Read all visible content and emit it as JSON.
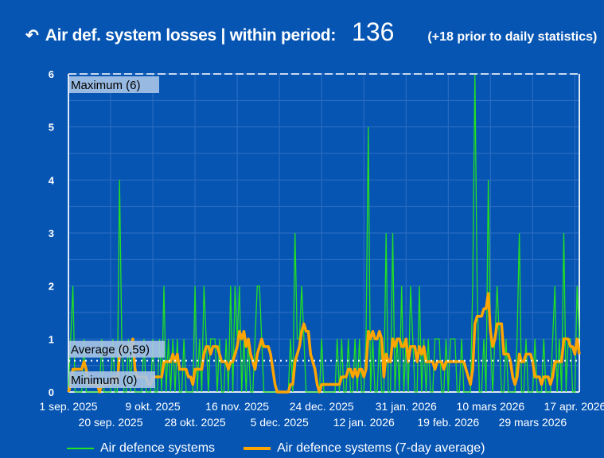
{
  "header": {
    "back_icon": "undo-arrow-icon",
    "title": "Air def. system losses | within period:",
    "total": "136",
    "prior_note": "(+18 prior to daily statistics)"
  },
  "colors": {
    "background": "#0655b3",
    "daily": "#22e022",
    "average": "#ffa500"
  },
  "chart_data": {
    "type": "line",
    "x_start": "2025-09-01",
    "x_tick_labels": [
      "1 sep. 2025",
      "20 sep. 2025",
      "9 okt. 2025",
      "28 okt. 2025",
      "16 nov. 2025",
      "5 dec. 2025",
      "24 dec. 2025",
      "12 jan. 2026",
      "31 jan. 2026",
      "19 feb. 2026",
      "10 mars 2026",
      "29 mars 2026",
      "17 apr. 2026"
    ],
    "y_ticks": [
      0,
      1,
      2,
      3,
      4,
      5,
      6
    ],
    "ylim": [
      0,
      6
    ],
    "grid": true,
    "legend_position": "bottom",
    "series": [
      {
        "name": "Air defence systems",
        "color": "#22e022",
        "values": [
          0,
          1,
          2,
          0,
          0,
          0,
          0,
          1,
          0,
          0,
          0,
          0,
          0,
          0,
          0,
          1,
          0,
          0,
          0,
          0,
          1,
          0,
          0,
          4,
          1,
          0,
          0,
          1,
          0,
          1,
          0,
          0,
          0,
          0,
          1,
          0,
          0,
          0,
          1,
          0,
          0,
          1,
          0,
          2,
          0,
          1,
          0,
          1,
          0,
          1,
          0,
          0,
          1,
          0,
          0,
          0,
          0,
          2,
          0,
          1,
          0,
          2,
          1,
          0,
          1,
          1,
          1,
          0,
          1,
          0,
          0,
          1,
          0,
          2,
          0,
          2,
          1,
          2,
          0,
          1,
          0,
          1,
          0,
          0,
          1,
          2,
          2,
          1,
          0,
          0,
          0,
          0,
          0,
          0,
          0,
          0,
          0,
          0,
          0,
          0,
          1,
          0,
          3,
          1,
          1,
          2,
          1,
          0,
          0,
          0,
          0,
          0,
          0,
          0,
          1,
          0,
          0,
          0,
          0,
          0,
          0,
          1,
          0,
          1,
          0,
          0,
          1,
          0,
          0,
          1,
          0,
          1,
          0,
          0,
          1,
          5,
          0,
          1,
          0,
          0,
          1,
          0,
          0,
          3,
          0,
          0,
          3,
          0,
          1,
          0,
          2,
          0,
          1,
          0,
          2,
          1,
          0,
          0,
          2,
          0,
          1,
          0,
          1,
          0,
          0,
          1,
          1,
          1,
          0,
          0,
          1,
          0,
          1,
          1,
          1,
          0,
          0,
          1,
          0,
          0,
          0,
          0,
          2,
          6,
          2,
          0,
          0,
          1,
          0,
          4,
          1,
          0,
          1,
          2,
          1,
          0,
          0,
          1,
          0,
          0,
          0,
          0,
          1,
          3,
          0,
          0,
          1,
          0,
          0,
          0,
          1,
          0,
          0,
          0,
          1,
          0,
          0,
          0,
          1,
          2,
          0,
          1,
          0,
          3,
          0,
          1,
          1,
          0,
          0,
          2,
          1
        ]
      },
      {
        "name": "Air defence systems (7-day average)",
        "color": "#ffa500",
        "derived": "7-day average"
      }
    ],
    "annotations": {
      "maximum": {
        "label": "Maximum (6)",
        "value": 6
      },
      "average": {
        "label": "Average (0,59)",
        "value": 0.59
      },
      "minimum": {
        "label": "Minimum (0)",
        "value": 0
      }
    }
  }
}
